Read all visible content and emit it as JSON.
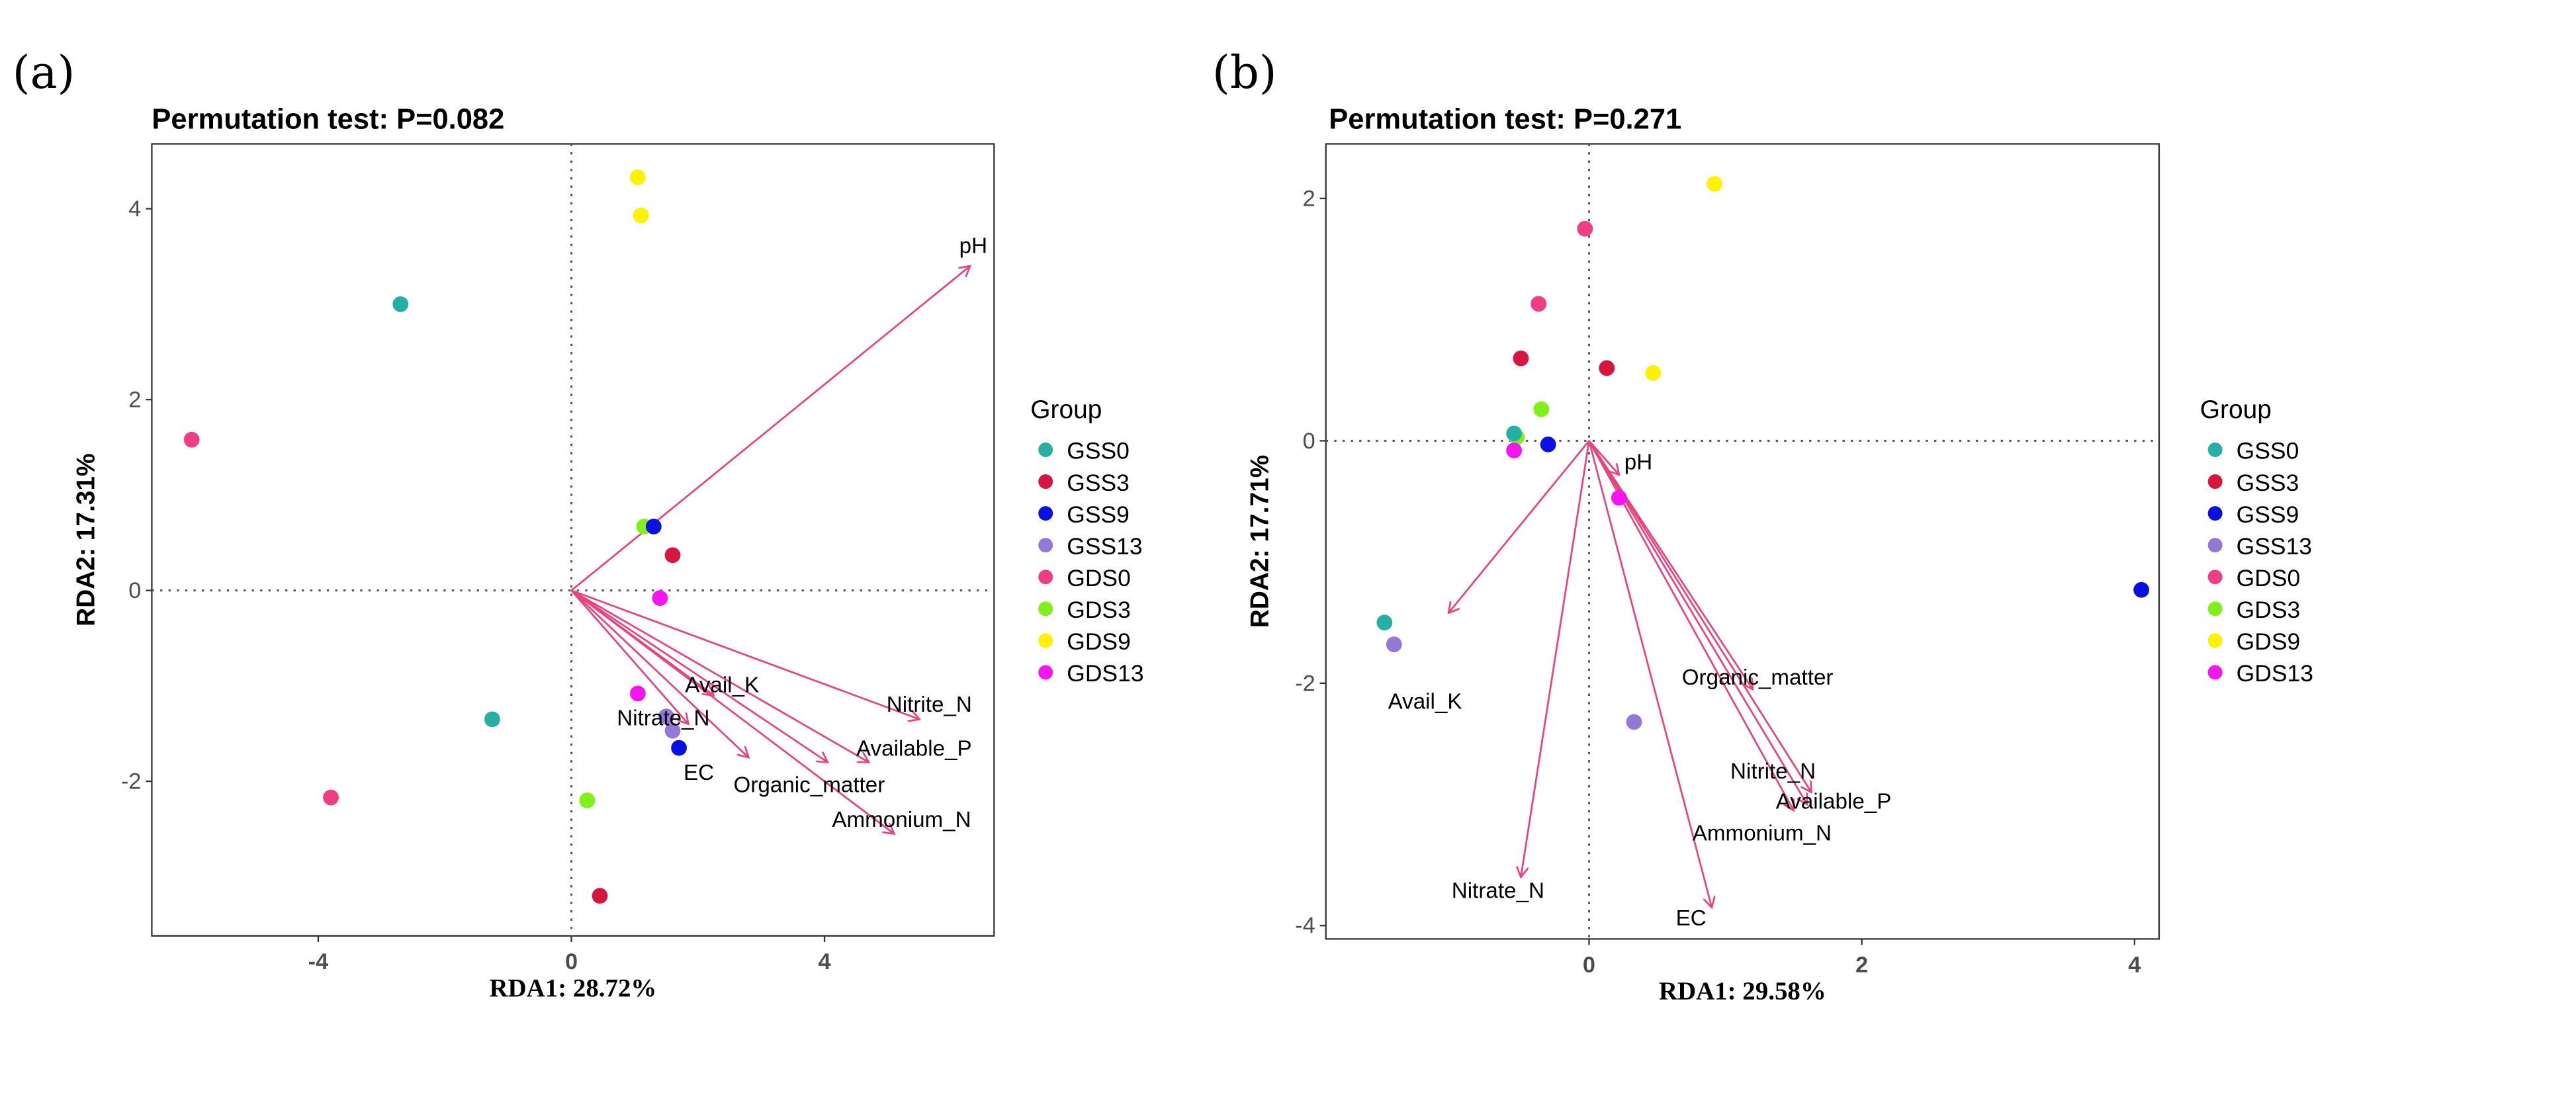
{
  "colors": {
    "arrow": "#E5467F",
    "GSS0": "#26B0A4",
    "GSS3": "#D7163F",
    "GSS9": "#0A10E0",
    "GSS13": "#9478D8",
    "GDS0": "#EE3F86",
    "GDS3": "#7FF01A",
    "GDS9": "#FFF200",
    "GDS13": "#F516EF"
  },
  "chart_data": [
    {
      "type": "scatter",
      "panel_label": "(a)",
      "title": "Permutation test: P=0.082",
      "xlabel": "RDA1: 28.72%",
      "ylabel": "RDA2: 17.31%",
      "xlim": [
        -6.63,
        6.68
      ],
      "ylim": [
        -3.62,
        4.68
      ],
      "xticks": [
        -4,
        0,
        4
      ],
      "yticks": [
        -2,
        0,
        2,
        4
      ],
      "grid": false,
      "reference_lines": "dotted at x=0 and y=0",
      "legend": {
        "title": "Group",
        "placement": "right",
        "entries": [
          "GSS0",
          "GSS3",
          "GSS9",
          "GSS13",
          "GDS0",
          "GDS3",
          "GDS9",
          "GDS13"
        ]
      },
      "points": [
        {
          "group": "GSS0",
          "x": -2.7,
          "y": 3.0
        },
        {
          "group": "GSS0",
          "x": -1.25,
          "y": -1.35
        },
        {
          "group": "GDS0",
          "x": -6.0,
          "y": 1.58
        },
        {
          "group": "GDS0",
          "x": -3.8,
          "y": -2.17
        },
        {
          "group": "GDS9",
          "x": 1.05,
          "y": 4.33
        },
        {
          "group": "GDS9",
          "x": 1.1,
          "y": 3.93
        },
        {
          "group": "GDS3",
          "x": 1.15,
          "y": 0.67
        },
        {
          "group": "GDS3",
          "x": 0.25,
          "y": -2.2
        },
        {
          "group": "GSS9",
          "x": 1.3,
          "y": 0.67
        },
        {
          "group": "GSS9",
          "x": 1.7,
          "y": -1.65
        },
        {
          "group": "GSS3",
          "x": 1.6,
          "y": 0.37
        },
        {
          "group": "GSS3",
          "x": 0.45,
          "y": -3.2
        },
        {
          "group": "GDS13",
          "x": 1.4,
          "y": -0.08
        },
        {
          "group": "GDS13",
          "x": 1.05,
          "y": -1.08
        },
        {
          "group": "GSS13",
          "x": 1.5,
          "y": -1.32
        },
        {
          "group": "GSS13",
          "x": 1.6,
          "y": -1.47
        }
      ],
      "arrows": [
        {
          "name": "pH",
          "x": 6.3,
          "y": 3.4
        },
        {
          "name": "Nitrite_N",
          "x": 5.5,
          "y": -1.35
        },
        {
          "name": "Available_P",
          "x": 4.7,
          "y": -1.8
        },
        {
          "name": "Ammonium_N",
          "x": 5.1,
          "y": -2.55
        },
        {
          "name": "Organic_matter",
          "x": 4.05,
          "y": -1.8
        },
        {
          "name": "EC",
          "x": 2.8,
          "y": -1.75
        },
        {
          "name": "Avail_K",
          "x": 2.25,
          "y": -1.1
        },
        {
          "name": "Nitrate_N",
          "x": 1.85,
          "y": -1.4
        }
      ]
    },
    {
      "type": "scatter",
      "panel_label": "(b)",
      "title": "Permutation test: P=0.271",
      "xlabel": "RDA1: 29.58%",
      "ylabel": "RDA2: 17.71%",
      "xlim": [
        -1.93,
        4.18
      ],
      "ylim": [
        -4.11,
        2.45
      ],
      "xticks": [
        0,
        2,
        4
      ],
      "yticks": [
        -4,
        -2,
        0,
        2
      ],
      "grid": false,
      "reference_lines": "dotted at x=0 and y=0",
      "legend": {
        "title": "Group",
        "placement": "right",
        "entries": [
          "GSS0",
          "GSS3",
          "GSS9",
          "GSS13",
          "GDS0",
          "GDS3",
          "GDS9",
          "GDS13"
        ]
      },
      "points": [
        {
          "group": "GDS9",
          "x": 0.92,
          "y": 2.12
        },
        {
          "group": "GDS9",
          "x": 0.47,
          "y": 0.56
        },
        {
          "group": "GDS0",
          "x": -0.03,
          "y": 1.75
        },
        {
          "group": "GDS0",
          "x": -0.37,
          "y": 1.13
        },
        {
          "group": "GSS3",
          "x": -0.5,
          "y": 0.68
        },
        {
          "group": "GSS3",
          "x": 0.13,
          "y": 0.6
        },
        {
          "group": "GDS3",
          "x": -0.35,
          "y": 0.26
        },
        {
          "group": "GDS3",
          "x": -0.53,
          "y": 0.03
        },
        {
          "group": "GSS0",
          "x": -0.55,
          "y": 0.06
        },
        {
          "group": "GSS0",
          "x": -1.5,
          "y": -1.5
        },
        {
          "group": "GSS9",
          "x": -0.3,
          "y": -0.03
        },
        {
          "group": "GSS9",
          "x": 4.05,
          "y": -1.23
        },
        {
          "group": "GDS13",
          "x": -0.55,
          "y": -0.08
        },
        {
          "group": "GDS13",
          "x": 0.22,
          "y": -0.47
        },
        {
          "group": "GSS13",
          "x": -1.43,
          "y": -1.68
        },
        {
          "group": "GSS13",
          "x": 0.33,
          "y": -2.32
        }
      ],
      "arrows": [
        {
          "name": "pH",
          "x": 0.22,
          "y": -0.28
        },
        {
          "name": "Avail_K",
          "x": -1.03,
          "y": -1.42
        },
        {
          "name": "Nitrate_N",
          "x": -0.5,
          "y": -3.6
        },
        {
          "name": "EC",
          "x": 0.9,
          "y": -3.85
        },
        {
          "name": "Ammonium_N",
          "x": 1.5,
          "y": -3.05
        },
        {
          "name": "Available_P",
          "x": 1.6,
          "y": -3.0
        },
        {
          "name": "Nitrite_N",
          "x": 1.63,
          "y": -2.9
        },
        {
          "name": "Organic_matter",
          "x": 1.2,
          "y": -2.05
        }
      ]
    }
  ]
}
